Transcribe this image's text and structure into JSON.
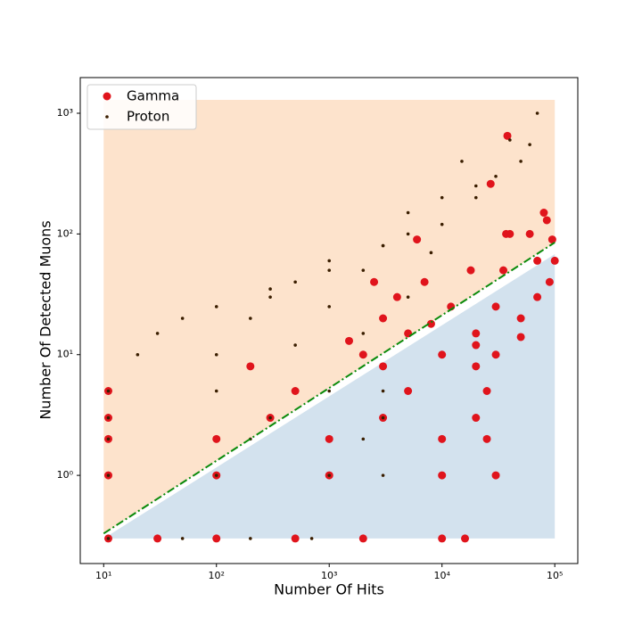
{
  "chart_data": {
    "type": "scatter",
    "x_label": "Number Of Hits",
    "y_label": "Number Of Detected Muons",
    "log_x": true,
    "log_y": true,
    "xlim": [
      6.2,
      160000
    ],
    "ylim": [
      0.186,
      1975
    ],
    "xticks": [
      {
        "value": 10,
        "label": "10¹"
      },
      {
        "value": 100,
        "label": "10²"
      },
      {
        "value": 1000,
        "label": "10³"
      },
      {
        "value": 10000,
        "label": "10⁴"
      },
      {
        "value": 100000,
        "label": "10⁵"
      }
    ],
    "yticks": [
      {
        "value": 1,
        "label": "10⁰"
      },
      {
        "value": 10,
        "label": "10¹"
      },
      {
        "value": 100,
        "label": "10²"
      },
      {
        "value": 1000,
        "label": "10³"
      }
    ],
    "legend": "upper left",
    "regions": [
      {
        "color": "#fde3cc",
        "x": [
          10,
          100000,
          100000,
          10
        ],
        "y": [
          0.33,
          85,
          1290,
          1290
        ]
      },
      {
        "color": "#d3e2ee",
        "x": [
          10,
          100000,
          100000
        ],
        "y": [
          0.3,
          0.3,
          68
        ]
      }
    ],
    "line": {
      "color": "#0a8a0a",
      "x": [
        10,
        100000
      ],
      "y": [
        0.33,
        85
      ]
    },
    "series": [
      {
        "name": "Gamma",
        "color": "#e0141c",
        "size": 4.5,
        "x": [
          11,
          30,
          100,
          500,
          2000,
          10000,
          16000,
          11,
          100,
          1000,
          10000,
          30000,
          11,
          100,
          1000,
          10000,
          25000,
          11,
          300,
          3000,
          20000,
          11,
          500,
          5000,
          25000,
          200,
          3000,
          20000,
          2000,
          10000,
          30000,
          1500,
          5000,
          20000,
          50000,
          3000,
          8000,
          30000,
          70000,
          90000,
          7000,
          20000,
          50000,
          100000,
          35000,
          60000,
          80000,
          40000,
          70000,
          27000,
          38000,
          37000,
          95000,
          85000,
          4000,
          12000,
          18000,
          2500,
          6000
        ],
        "values": [
          0.3,
          0.3,
          0.3,
          0.3,
          0.3,
          0.3,
          0.3,
          1,
          1,
          1,
          1,
          1,
          2,
          2,
          2,
          2,
          2,
          3,
          3,
          3,
          3,
          5,
          5,
          5,
          5,
          8,
          8,
          8,
          10,
          10,
          10,
          13,
          15,
          12,
          14,
          20,
          18,
          25,
          30,
          40,
          40,
          15,
          20,
          60,
          50,
          100,
          150,
          100,
          60,
          260,
          650,
          100,
          90,
          130,
          30,
          25,
          50,
          40,
          90
        ]
      },
      {
        "name": "Proton",
        "color": "#3a1e00",
        "size": 1.8,
        "x": [
          11,
          50,
          200,
          700,
          11,
          100,
          1000,
          3000,
          11,
          200,
          2000,
          11,
          300,
          3000,
          11,
          100,
          1000,
          3000,
          20,
          100,
          500,
          2000,
          30,
          200,
          1000,
          5000,
          50,
          300,
          2000,
          8000,
          100,
          500,
          3000,
          10000,
          300,
          1000,
          5000,
          20000,
          1000,
          3000,
          10000,
          30000,
          5000,
          20000,
          50000,
          15000,
          40000,
          70000,
          60000
        ],
        "values": [
          0.3,
          0.3,
          0.3,
          0.3,
          1,
          1,
          1,
          1,
          2,
          2,
          2,
          3,
          3,
          3,
          5,
          5,
          5,
          5,
          10,
          10,
          12,
          15,
          15,
          20,
          25,
          30,
          20,
          30,
          50,
          70,
          25,
          40,
          80,
          120,
          35,
          60,
          150,
          200,
          50,
          80,
          200,
          300,
          100,
          250,
          400,
          400,
          600,
          1000,
          550
        ]
      }
    ]
  }
}
